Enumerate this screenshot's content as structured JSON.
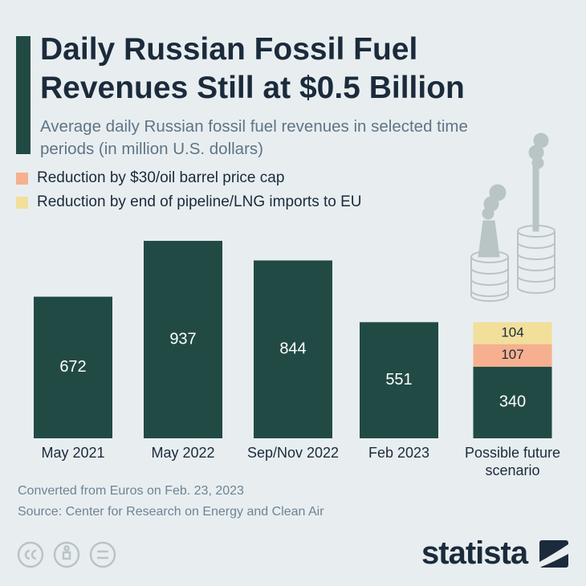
{
  "chart_data": {
    "type": "stacked-bar",
    "title": "Daily Russian Fossil Fuel Revenues Still at $0.5 Billion",
    "subtitle": "Average daily Russian fossil fuel revenues in selected time periods (in million U.S. dollars)",
    "categories": [
      "May 2021",
      "May 2022",
      "Sep/Nov 2022",
      "Feb 2023",
      "Possible future scenario"
    ],
    "series": [
      {
        "color": "#224a45",
        "values": [
          672,
          937,
          844,
          551,
          340
        ]
      },
      {
        "name": "Reduction by $30/oil barrel price cap",
        "color": "#f6b08f",
        "values": [
          null,
          null,
          null,
          null,
          107
        ]
      },
      {
        "name": "Reduction by end of pipeline/LNG imports to EU",
        "color": "#f1df9a",
        "values": [
          null,
          null,
          null,
          null,
          104
        ]
      }
    ],
    "ylim": [
      0,
      1000
    ],
    "notes": [
      "Converted from Euros on Feb. 23, 2023",
      "Source: Center for Research on Energy and Clean Air"
    ],
    "brand": "statista"
  }
}
